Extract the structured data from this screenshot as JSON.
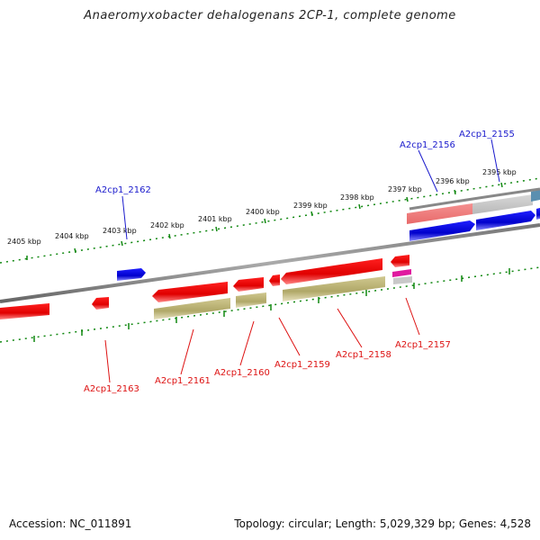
{
  "title": "Anaeromyxobacter dehalogenans 2CP-1, complete genome",
  "accession": "Accession: NC_011891",
  "topology": "Topology: circular; Length: 5,029,329 bp; Genes: 4,528",
  "colors": {
    "forward_gene": "#1010dd",
    "reverse_gene": "#e01010",
    "rna_gene": "#b8b070",
    "backbone": "#888888",
    "tick": "#118811",
    "label_blue": "#1a1acc",
    "label_red": "#dd1111"
  },
  "ruler": {
    "labels": [
      "2395 kbp",
      "2396 kbp",
      "2397 kbp",
      "2398 kbp",
      "2399 kbp",
      "2400 kbp",
      "2401 kbp",
      "2402 kbp",
      "2403 kbp",
      "2404 kbp",
      "2405 kbp"
    ]
  },
  "gene_labels": {
    "top": [
      "A2cp1_2155",
      "A2cp1_2156",
      "A2cp1_2162"
    ],
    "bottom": [
      "A2cp1_2157",
      "A2cp1_2158",
      "A2cp1_2159",
      "A2cp1_2160",
      "A2cp1_2161",
      "A2cp1_2163"
    ]
  }
}
